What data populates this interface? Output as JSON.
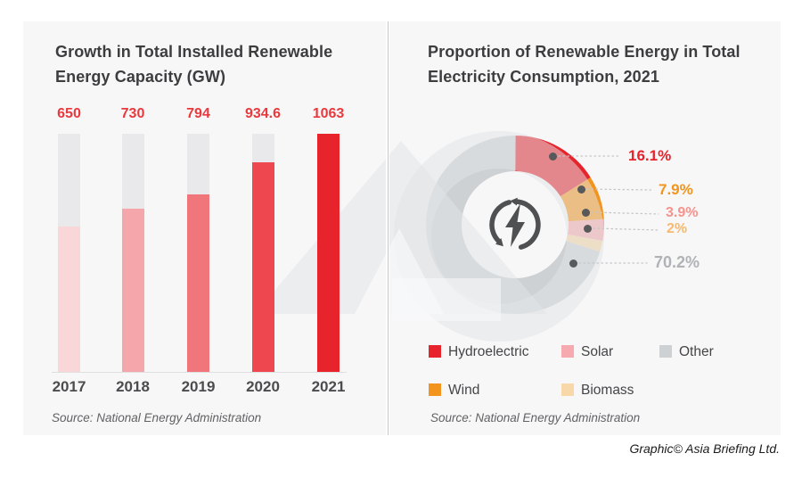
{
  "panels": {
    "left": {
      "source": "Source: National Energy Administration"
    },
    "right": {
      "source": "Source: National Energy Administration"
    }
  },
  "footer": {
    "credit": "Graphic© Asia Briefing Ltd."
  },
  "watermark": {
    "icon": "asia-briefing-logo-watermark",
    "color": "#ecedef"
  },
  "chart_data": [
    {
      "type": "bar",
      "title": "Growth in Total Installed Renewable Energy Capacity (GW)",
      "categories": [
        "2017",
        "2018",
        "2019",
        "2020",
        "2021"
      ],
      "values": [
        650,
        730,
        794,
        934.6,
        1063
      ],
      "value_labels": [
        "650",
        "730",
        "794",
        "934.6",
        "1063"
      ],
      "ylabel": "",
      "xlabel": "",
      "ylim": [
        0,
        1063
      ],
      "grid": false,
      "bar_colors": [
        "#f9d6d7",
        "#f4a6aa",
        "#f0767c",
        "#ee4750",
        "#e7232b"
      ],
      "track_color": "#e9e8ea",
      "value_label_color": "#e8393e",
      "source": "Source: National Energy Administration"
    },
    {
      "type": "pie",
      "donut": true,
      "title": "Proportion of Renewable Energy in Total Electricity Consumption, 2021",
      "slices": [
        {
          "label": "Hydroelectric",
          "value": 16.1,
          "display": "16.1%",
          "color": "#e7232b",
          "label_color": "#e7232b"
        },
        {
          "label": "Wind",
          "value": 7.9,
          "display": "7.9%",
          "color": "#f2941d",
          "label_color": "#f2941d"
        },
        {
          "label": "Solar",
          "value": 3.9,
          "display": "3.9%",
          "color": "#f6a9ae",
          "label_color": "#f5938d"
        },
        {
          "label": "Biomass",
          "value": 2,
          "display": "2%",
          "color": "#f8d8a8",
          "label_color": "#f8b96e"
        },
        {
          "label": "Other",
          "value": 70.2,
          "display": "70.2%",
          "color": "#ced1d4",
          "label_color": "#b0b2b5"
        }
      ],
      "legend_order": [
        "Hydroelectric",
        "Solar",
        "Other",
        "Wind",
        "Biomass"
      ],
      "legend_position": "bottom",
      "center_icon": "power-cycle-icon",
      "source": "Source: National Energy Administration"
    }
  ]
}
